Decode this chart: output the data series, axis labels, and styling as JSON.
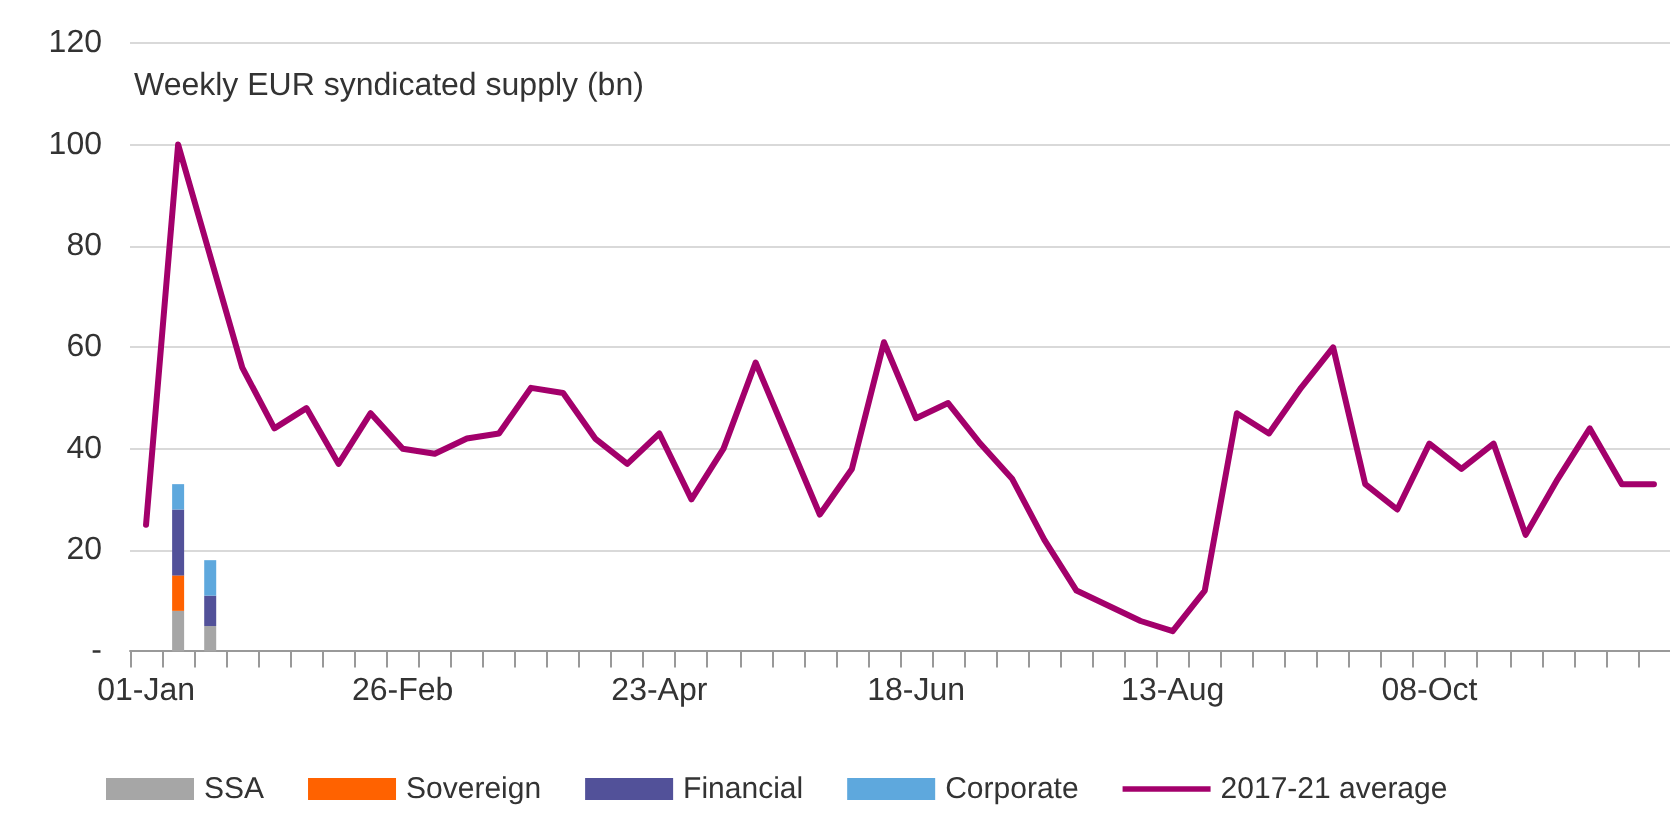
{
  "chart_data": {
    "type": "bar",
    "title": "Weekly EUR syndicated supply (bn)",
    "categories": [
      "01-Jan",
      null,
      null,
      null,
      null,
      null,
      null,
      null,
      "26-Feb",
      null,
      null,
      null,
      null,
      null,
      null,
      null,
      "23-Apr",
      null,
      null,
      null,
      null,
      null,
      null,
      null,
      "18-Jun",
      null,
      null,
      null,
      null,
      null,
      null,
      null,
      "13-Aug",
      null,
      null,
      null,
      null,
      null,
      null,
      null,
      "08-Oct",
      null,
      null,
      null,
      null,
      null,
      null,
      null
    ],
    "series": [
      {
        "name": "SSA",
        "color": "#a6a6a6",
        "values": [
          null,
          8,
          5,
          null,
          null,
          null,
          null,
          null,
          null,
          null,
          null,
          null,
          null,
          null,
          null,
          null,
          null,
          null,
          null,
          null,
          null,
          null,
          null,
          null,
          null,
          null,
          null,
          null,
          null,
          null,
          null,
          null,
          null,
          null,
          null,
          null,
          null,
          null,
          null,
          null,
          null,
          null,
          null,
          null,
          null,
          null,
          null,
          null
        ]
      },
      {
        "name": "Sovereign",
        "color": "#ff6200",
        "values": [
          null,
          7,
          0,
          null,
          null,
          null,
          null,
          null,
          null,
          null,
          null,
          null,
          null,
          null,
          null,
          null,
          null,
          null,
          null,
          null,
          null,
          null,
          null,
          null,
          null,
          null,
          null,
          null,
          null,
          null,
          null,
          null,
          null,
          null,
          null,
          null,
          null,
          null,
          null,
          null,
          null,
          null,
          null,
          null,
          null,
          null,
          null,
          null
        ]
      },
      {
        "name": "Financial",
        "color": "#525199",
        "values": [
          null,
          13,
          6,
          null,
          null,
          null,
          null,
          null,
          null,
          null,
          null,
          null,
          null,
          null,
          null,
          null,
          null,
          null,
          null,
          null,
          null,
          null,
          null,
          null,
          null,
          null,
          null,
          null,
          null,
          null,
          null,
          null,
          null,
          null,
          null,
          null,
          null,
          null,
          null,
          null,
          null,
          null,
          null,
          null,
          null,
          null,
          null,
          null
        ]
      },
      {
        "name": "Corporate",
        "color": "#5ea8dd",
        "values": [
          null,
          5,
          7,
          null,
          null,
          null,
          null,
          null,
          null,
          null,
          null,
          null,
          null,
          null,
          null,
          null,
          null,
          null,
          null,
          null,
          null,
          null,
          null,
          null,
          null,
          null,
          null,
          null,
          null,
          null,
          null,
          null,
          null,
          null,
          null,
          null,
          null,
          null,
          null,
          null,
          null,
          null,
          null,
          null,
          null,
          null,
          null,
          null
        ]
      },
      {
        "name": "2017-21 average",
        "type": "line",
        "color": "#a3006b",
        "values": [
          25,
          100,
          78,
          56,
          44,
          48,
          37,
          47,
          40,
          39,
          42,
          43,
          52,
          51,
          42,
          37,
          43,
          30,
          40,
          57,
          42,
          27,
          36,
          61,
          46,
          49,
          41,
          34,
          22,
          12,
          9,
          6,
          4,
          12,
          47,
          43,
          52,
          60,
          33,
          28,
          41,
          36,
          41,
          23,
          34,
          44,
          33,
          33
        ]
      }
    ],
    "stacked": true,
    "ylim": [
      0,
      120
    ],
    "yticks": [
      {
        "value": 0,
        "label": "-"
      },
      20,
      40,
      60,
      80,
      100,
      120
    ],
    "grid": "y",
    "legend": "bottom",
    "marker": "none"
  }
}
